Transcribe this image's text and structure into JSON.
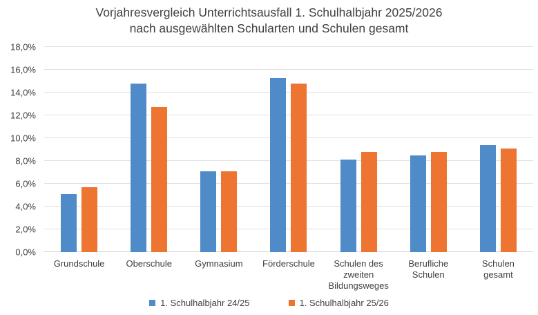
{
  "title": {
    "line1": "Vorjahresvergleich Unterrichtsausfall 1. Schulhalbjahr 2025/2026",
    "line2": "nach ausgewählten Schularten und Schulen gesamt"
  },
  "colors": {
    "series1_blue": "#4e8bc8",
    "series2_orange": "#ed7431",
    "gridline": "#e0e0e0",
    "axis_line": "#cfcfcf",
    "text": "#404040",
    "title_text": "#3f3f3f"
  },
  "chart_data": {
    "type": "bar",
    "title": "Vorjahresvergleich Unterrichtsausfall 1. Schulhalbjahr 2025/2026 nach ausgewählten Schularten und Schulen gesamt",
    "categories": [
      "Grundschule",
      "Oberschule",
      "Gymnasium",
      "Förderschule",
      "Schulen des zweiten Bildungsweges",
      "Berufliche Schulen",
      "Schulen gesamt"
    ],
    "category_label_lines": [
      [
        "Grundschule"
      ],
      [
        "Oberschule"
      ],
      [
        "Gymnasium"
      ],
      [
        "Förderschule"
      ],
      [
        "Schulen des",
        "zweiten",
        "Bildungsweges"
      ],
      [
        "Berufliche",
        "Schulen"
      ],
      [
        "Schulen",
        "gesamt"
      ]
    ],
    "series": [
      {
        "name": "1. Schulhalbjahr 24/25",
        "color": "#4e8bc8",
        "values": [
          5.1,
          14.8,
          7.1,
          15.3,
          8.1,
          8.5,
          9.4
        ]
      },
      {
        "name": "1. Schulhalbjahr 25/26",
        "color": "#ed7431",
        "values": [
          5.7,
          12.7,
          7.1,
          14.8,
          8.8,
          8.8,
          9.1
        ]
      }
    ],
    "xlabel": "",
    "ylabel": "",
    "ylim": [
      0,
      18
    ],
    "ytick_step": 2,
    "ytick_labels": [
      "0,0%",
      "2,0%",
      "4,0%",
      "6,0%",
      "8,0%",
      "10,0%",
      "12,0%",
      "14,0%",
      "16,0%",
      "18,0%"
    ],
    "grid": "horizontal",
    "legend_position": "bottom"
  }
}
